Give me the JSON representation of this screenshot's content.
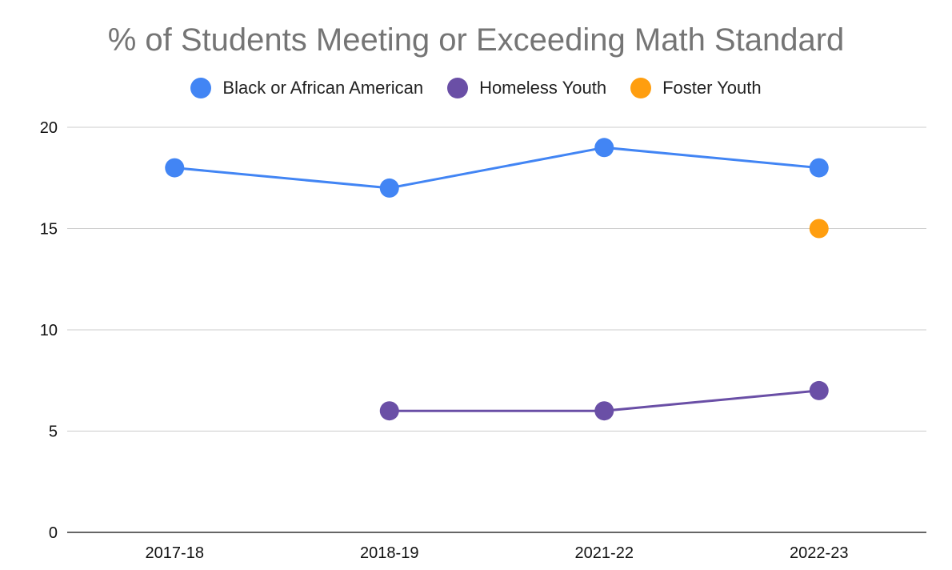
{
  "chart_data": {
    "type": "line",
    "title": "% of Students Meeting or Exceeding Math Standard",
    "xlabel": "",
    "ylabel": "",
    "categories": [
      "2017-18",
      "2018-19",
      "2021-22",
      "2022-23"
    ],
    "ylim": [
      0,
      20
    ],
    "yticks": [
      0,
      5,
      10,
      15,
      20
    ],
    "grid": true,
    "legend_position": "top",
    "series": [
      {
        "name": "Black or African American",
        "color": "#4285f4",
        "values": [
          18,
          17,
          19,
          18
        ]
      },
      {
        "name": "Homeless Youth",
        "color": "#6a4fa6",
        "values": [
          null,
          6,
          6,
          7
        ]
      },
      {
        "name": "Foster Youth",
        "color": "#ff9e0f",
        "values": [
          null,
          null,
          null,
          15
        ]
      }
    ]
  }
}
